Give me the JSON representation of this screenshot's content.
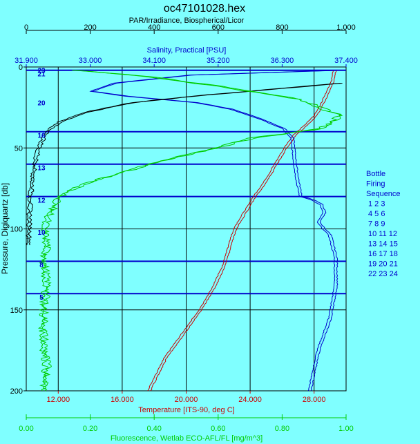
{
  "chart_data": {
    "type": "line",
    "title": "oc47101028.hex",
    "top_axis_1": {
      "label": "PAR/Irradiance, Biospherical/Licor",
      "range": [
        0,
        1000
      ],
      "ticks": [
        "0",
        "200",
        "400",
        "600",
        "800",
        "1,000"
      ],
      "color": "#000000"
    },
    "top_axis_2": {
      "label": "Salinity, Practical [PSU]",
      "range": [
        31.9,
        37.4
      ],
      "ticks": [
        "31.900",
        "33.000",
        "34.100",
        "35.200",
        "36.300",
        "37.400"
      ],
      "color": "#0000cc"
    },
    "y_axis": {
      "label": "Pressure, Digiquartz [db]",
      "range": [
        0,
        200
      ],
      "ticks": [
        "0",
        "50",
        "100",
        "150",
        "200"
      ],
      "inverted": true
    },
    "bottom_axis_1": {
      "label": "Temperature [ITS-90, deg C]",
      "range": [
        10,
        30
      ],
      "ticks": [
        "12.000",
        "16.000",
        "20.000",
        "24.000",
        "28.000"
      ],
      "tick_values": [
        12,
        16,
        20,
        24,
        28
      ],
      "color": "#cc0000"
    },
    "bottom_axis_2": {
      "label": "Fluorescence, Wetlab ECO-AFL/FL [mg/m^3]",
      "range": [
        0,
        1
      ],
      "ticks": [
        "0.00",
        "0.20",
        "0.40",
        "0.60",
        "0.80",
        "1.00"
      ],
      "color": "#00cc00"
    },
    "grid": true,
    "bottle_legend": {
      "title_lines": [
        "Bottle",
        "Firing",
        "Sequence"
      ],
      "rows": [
        "1  2  3",
        "4  5  6",
        "7  8  9",
        "10 11 12",
        "13 14 15",
        "16 17 18",
        "19 20 21",
        "22 23 24"
      ]
    },
    "bottle_markers": [
      {
        "label": "23",
        "pressure": 2
      },
      {
        "label": "21",
        "pressure": 4
      },
      {
        "label": "20",
        "pressure": 22
      },
      {
        "label": "16",
        "pressure": 42
      },
      {
        "label": "13",
        "pressure": 62
      },
      {
        "label": "12",
        "pressure": 82
      },
      {
        "label": "10",
        "pressure": 102
      },
      {
        "label": "8",
        "pressure": 122
      },
      {
        "label": "5",
        "pressure": 142
      }
    ],
    "bottle_lines_pressure": [
      2,
      40,
      60,
      80,
      120,
      140
    ],
    "series": [
      {
        "name": "Temperature",
        "color": "#cc0000",
        "axis": "temperature",
        "points": [
          [
            29.2,
            2
          ],
          [
            29.1,
            8
          ],
          [
            28.8,
            15
          ],
          [
            28.3,
            25
          ],
          [
            28.0,
            30
          ],
          [
            27.4,
            36
          ],
          [
            26.7,
            42
          ],
          [
            26.0,
            52
          ],
          [
            25.4,
            62
          ],
          [
            24.8,
            72
          ],
          [
            24.2,
            80
          ],
          [
            23.7,
            88
          ],
          [
            23.2,
            96
          ],
          [
            22.9,
            102
          ],
          [
            22.6,
            112
          ],
          [
            22.3,
            122
          ],
          [
            21.7,
            135
          ],
          [
            20.8,
            150
          ],
          [
            19.7,
            165
          ],
          [
            18.6,
            180
          ],
          [
            17.6,
            200
          ]
        ]
      },
      {
        "name": "Salinity",
        "color": "#0000cc",
        "axis": "salinity",
        "points": [
          [
            37.3,
            2
          ],
          [
            34.7,
            5
          ],
          [
            33.4,
            10
          ],
          [
            33.0,
            15
          ],
          [
            33.6,
            18
          ],
          [
            34.2,
            20
          ],
          [
            34.8,
            22
          ],
          [
            35.4,
            26
          ],
          [
            35.9,
            32
          ],
          [
            36.3,
            38
          ],
          [
            36.45,
            44
          ],
          [
            36.5,
            60
          ],
          [
            36.55,
            72
          ],
          [
            36.6,
            80
          ],
          [
            36.8,
            82
          ],
          [
            36.95,
            85
          ],
          [
            37.0,
            90
          ],
          [
            36.9,
            96
          ],
          [
            37.1,
            104
          ],
          [
            37.2,
            118
          ],
          [
            37.2,
            135
          ],
          [
            37.1,
            155
          ],
          [
            36.9,
            175
          ],
          [
            36.75,
            200
          ]
        ]
      },
      {
        "name": "PAR/Irradiance",
        "color": "#000000",
        "axis": "par",
        "points": [
          [
            980,
            10
          ],
          [
            750,
            14
          ],
          [
            520,
            18
          ],
          [
            330,
            22
          ],
          [
            180,
            28
          ],
          [
            100,
            34
          ],
          [
            60,
            40
          ],
          [
            35,
            50
          ],
          [
            22,
            60
          ],
          [
            14,
            70
          ],
          [
            9,
            80
          ],
          [
            6,
            90
          ],
          [
            4,
            100
          ],
          [
            3,
            110
          ]
        ]
      },
      {
        "name": "Fluorescence",
        "color": "#00cc00",
        "axis": "fluorescence",
        "points": [
          [
            0.15,
            2
          ],
          [
            0.38,
            6
          ],
          [
            0.6,
            12
          ],
          [
            0.85,
            20
          ],
          [
            0.98,
            30
          ],
          [
            0.92,
            38
          ],
          [
            0.7,
            44
          ],
          [
            0.55,
            52
          ],
          [
            0.42,
            58
          ],
          [
            0.28,
            66
          ],
          [
            0.18,
            72
          ],
          [
            0.1,
            80
          ],
          [
            0.07,
            90
          ],
          [
            0.05,
            100
          ],
          [
            0.06,
            110
          ],
          [
            0.05,
            120
          ],
          [
            0.06,
            135
          ],
          [
            0.05,
            150
          ],
          [
            0.05,
            170
          ],
          [
            0.06,
            185
          ],
          [
            0.05,
            200
          ]
        ]
      }
    ]
  }
}
